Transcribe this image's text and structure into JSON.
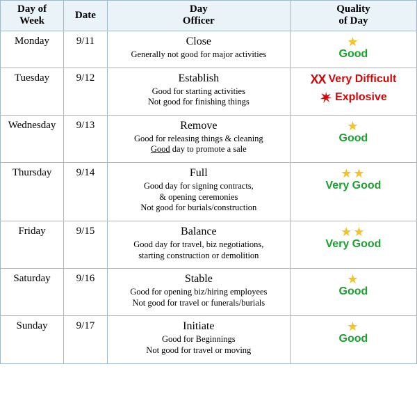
{
  "headers": {
    "day": "Day of\nWeek",
    "date": "Date",
    "officer": "Day\nOfficer",
    "quality": "Quality\nof Day"
  },
  "colors": {
    "header_bg": "#eaf3f8",
    "border": "#9fb9c9",
    "good_text": "#1aa12f",
    "danger_text": "#d20808",
    "star": "#f4c226"
  },
  "rows": [
    {
      "day": "Monday",
      "date": "9/11",
      "officer_title": "Close",
      "officer_desc": "Generally not good for major activities",
      "quality": {
        "type": "good",
        "stars": 1,
        "label": "Good"
      }
    },
    {
      "day": "Tuesday",
      "date": "9/12",
      "officer_title": "Establish",
      "officer_desc": "Good for starting activities\nNot good for finishing things",
      "quality": {
        "type": "very_difficult",
        "label": "Very Difficult",
        "sub_label": "Explosive"
      }
    },
    {
      "day": "Wednesday",
      "date": "9/13",
      "officer_title": "Remove",
      "officer_desc_pre": "Good for releasing things & cleaning\n",
      "officer_desc_underline": "Good",
      "officer_desc_post": " day to promote a sale",
      "quality": {
        "type": "good",
        "stars": 1,
        "label": "Good"
      }
    },
    {
      "day": "Thursday",
      "date": "9/14",
      "officer_title": "Full",
      "officer_desc": "Good day for signing contracts,\n& opening ceremonies\nNot good for burials/construction",
      "quality": {
        "type": "very_good",
        "stars": 2,
        "label": "Very Good"
      }
    },
    {
      "day": "Friday",
      "date": "9/15",
      "officer_title": "Balance",
      "officer_desc": "Good day for travel, biz negotiations,\nstarting construction or demolition",
      "quality": {
        "type": "very_good",
        "stars": 2,
        "label": "Very Good"
      }
    },
    {
      "day": "Saturday",
      "date": "9/16",
      "officer_title": "Stable",
      "officer_desc": "Good for opening biz/hiring employees\nNot good for travel or funerals/burials",
      "quality": {
        "type": "good",
        "stars": 1,
        "label": "Good"
      }
    },
    {
      "day": "Sunday",
      "date": "9/17",
      "officer_title": "Initiate",
      "officer_desc": "Good for Beginnings\nNot good for travel or moving",
      "quality": {
        "type": "good",
        "stars": 1,
        "label": "Good"
      }
    }
  ]
}
